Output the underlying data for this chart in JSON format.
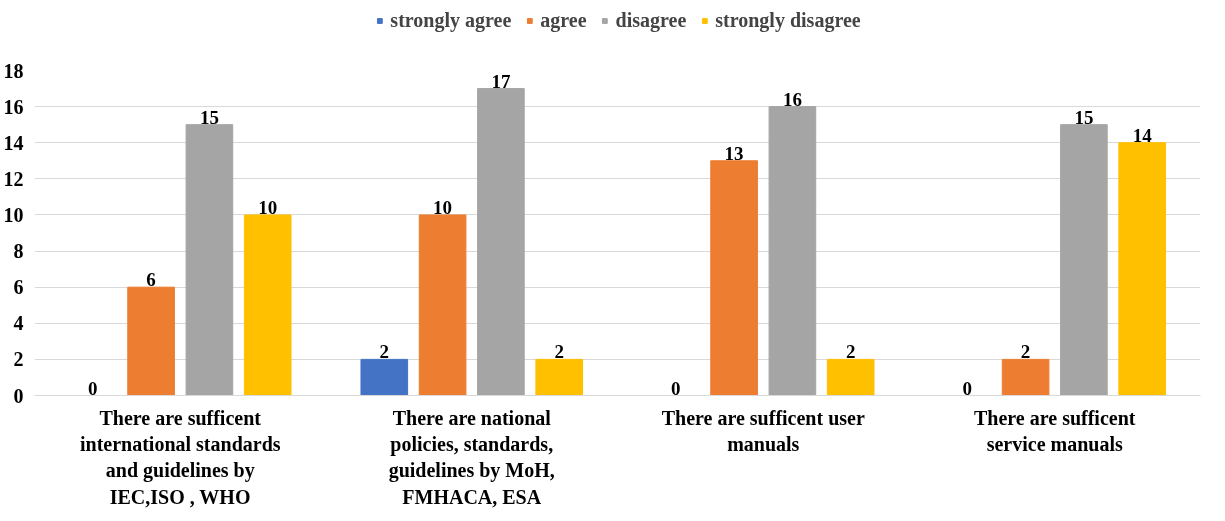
{
  "chart_data": {
    "type": "bar",
    "categories": [
      "There are sufficent international standards and guidelines by IEC,ISO , WHO",
      "There are national policies, standards, guidelines by MoH, FMHACA, ESA",
      "There are sufficent user manuals",
      "There are sufficent service manuals"
    ],
    "series": [
      {
        "name": "strongly agree",
        "color": "#4472c4",
        "values": [
          0,
          2,
          0,
          0
        ]
      },
      {
        "name": "agree",
        "color": "#ed7d31",
        "values": [
          6,
          10,
          13,
          2
        ]
      },
      {
        "name": "disagree",
        "color": "#a5a5a5",
        "values": [
          15,
          17,
          16,
          15
        ]
      },
      {
        "name": "strongly disagree",
        "color": "#ffc000",
        "values": [
          10,
          2,
          2,
          14
        ]
      }
    ],
    "ylim": [
      0,
      18
    ],
    "yticks": [
      0,
      2,
      4,
      6,
      8,
      10,
      12,
      14,
      16,
      18
    ],
    "grid": "y",
    "legend": "top",
    "data_labels": true
  }
}
